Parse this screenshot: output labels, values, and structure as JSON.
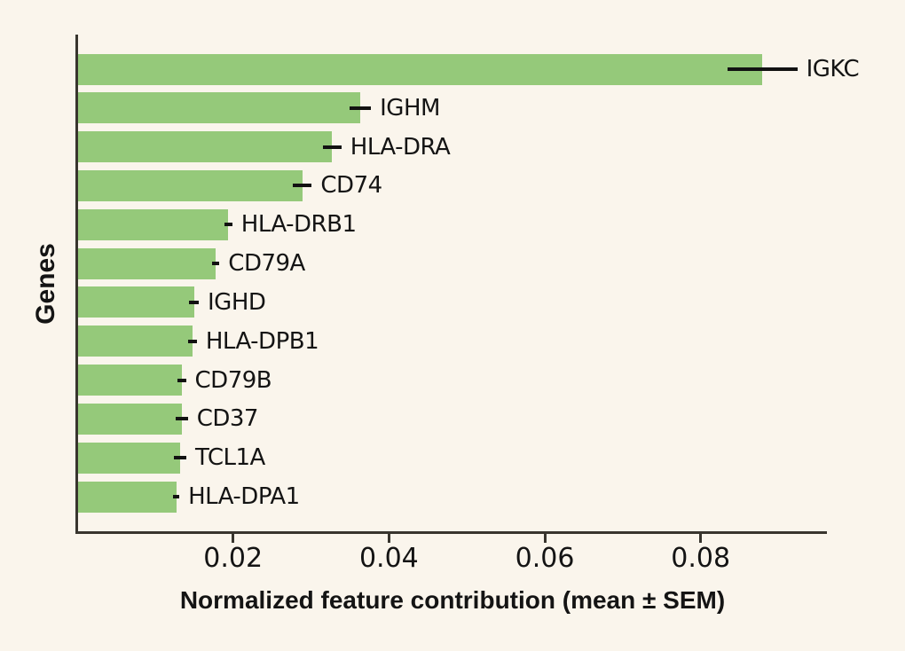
{
  "chart_data": {
    "type": "bar",
    "orientation": "horizontal",
    "title": "",
    "xlabel": "Normalized feature contribution (mean ± SEM)",
    "ylabel": "Genes",
    "categories": [
      "IGKC",
      "IGHM",
      "HLA-DRA",
      "CD74",
      "HLA-DRB1",
      "CD79A",
      "IGHD",
      "HLA-DPB1",
      "CD79B",
      "CD37",
      "TCL1A",
      "HLA-DPA1"
    ],
    "series": [
      {
        "name": "Normalized feature contribution (mean)",
        "values": [
          0.0879,
          0.0363,
          0.0327,
          0.0289,
          0.0194,
          0.0178,
          0.015,
          0.0148,
          0.0134,
          0.0134,
          0.0132,
          0.0127
        ],
        "sem": [
          0.0045,
          0.0014,
          0.0012,
          0.0012,
          0.0005,
          0.00045,
          0.0006,
          0.00055,
          0.00055,
          0.0008,
          0.0008,
          0.0004
        ]
      }
    ],
    "x_ticks": [
      0.02,
      0.04,
      0.06,
      0.08
    ],
    "x_tick_labels": [
      "0.02",
      "0.04",
      "0.06",
      "0.08"
    ],
    "xlim": [
      0,
      0.0962
    ],
    "grid": false,
    "legend": "none",
    "error_bars": "horizontal, mean ± SEM",
    "colors": {
      "background": "#faf5ec",
      "bar": "#95c97a",
      "axis": "#38352e",
      "error_bar": "#121212",
      "text": "#141414"
    }
  }
}
